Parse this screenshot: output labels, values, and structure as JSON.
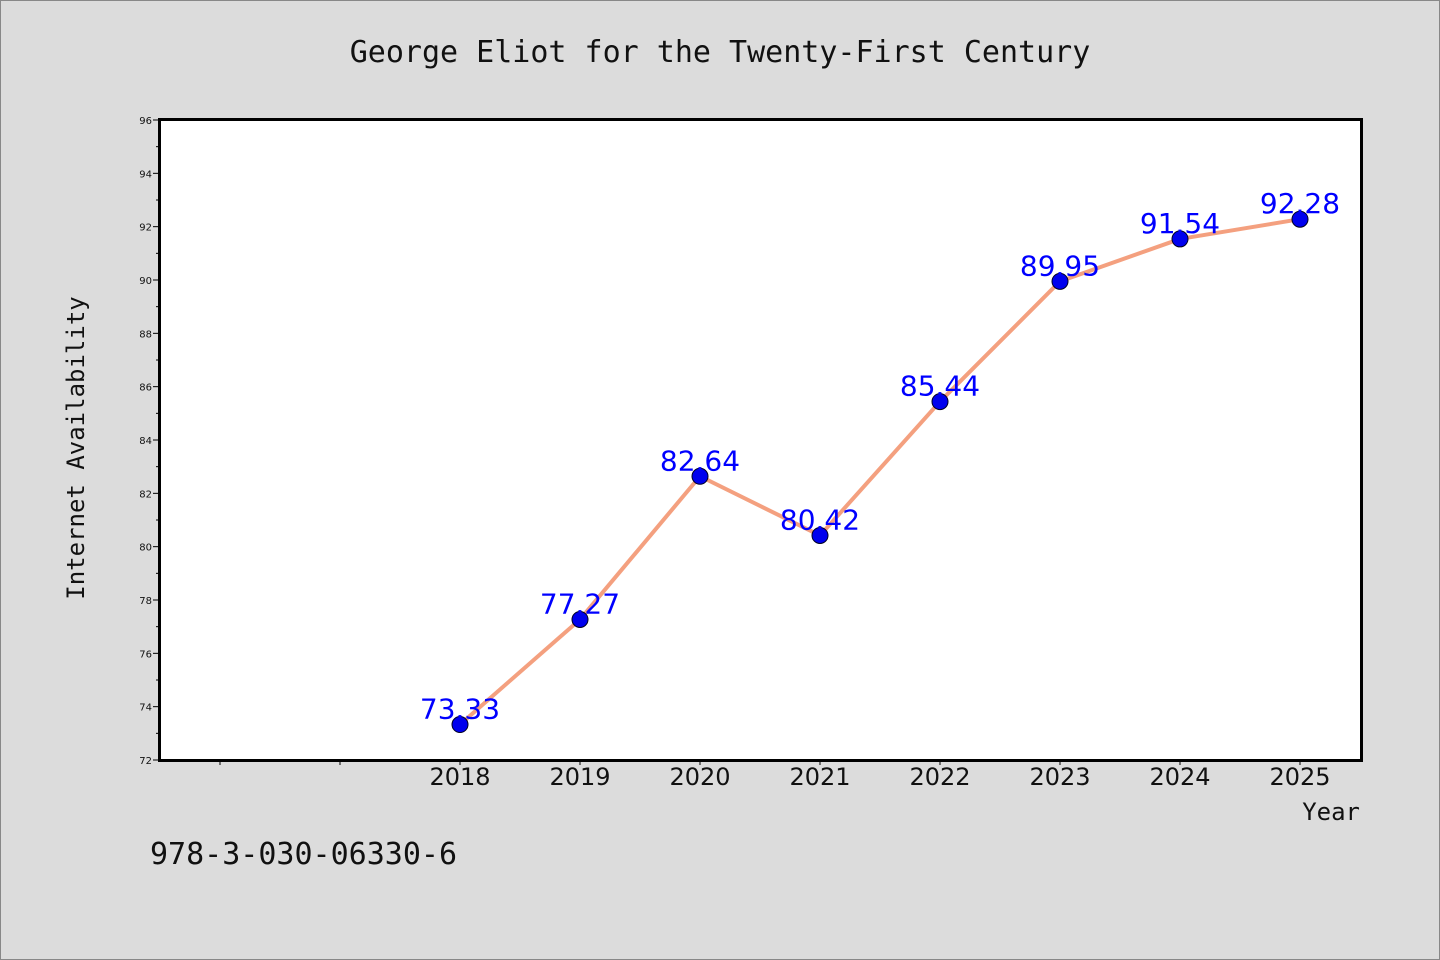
{
  "chart_data": {
    "type": "line",
    "title": "George Eliot for the Twenty-First Century",
    "xlabel": "Year",
    "ylabel": "Internet Availability",
    "categories": [
      "2018",
      "2019",
      "2020",
      "2021",
      "2022",
      "2023",
      "2024",
      "2025"
    ],
    "series": [
      {
        "values": [
          73.33,
          77.27,
          82.64,
          80.42,
          85.44,
          89.95,
          91.54,
          92.28
        ],
        "value_labels": [
          "73.33",
          "77.27",
          "82.64",
          "80.42",
          "85.44",
          "89.95",
          "91.54",
          "92.28"
        ]
      }
    ],
    "ylim": [
      72,
      96
    ],
    "yticks": [
      "72",
      "74",
      "76",
      "78",
      "80",
      "82",
      "84",
      "86",
      "88",
      "90",
      "92",
      "94",
      "96"
    ],
    "grid": false,
    "line_color": "#f4a07f",
    "marker_color": "#0000ee",
    "label_color": "#0000ff"
  },
  "footer_text": "978-3-030-06330-6"
}
